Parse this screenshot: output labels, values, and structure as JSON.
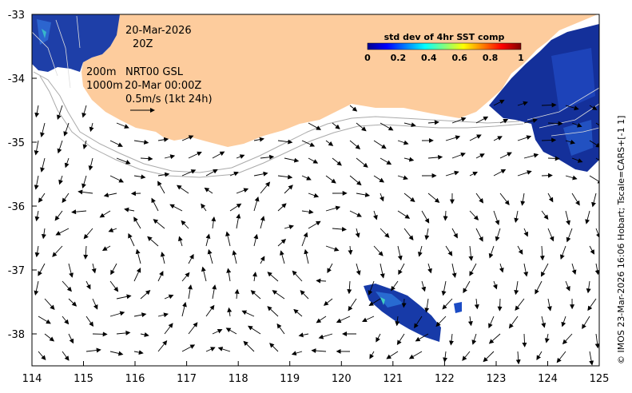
{
  "map": {
    "x_ticks": [
      "114",
      "115",
      "116",
      "117",
      "118",
      "119",
      "120",
      "121",
      "122",
      "123",
      "124",
      "125"
    ],
    "y_ticks": [
      "-33",
      "-34",
      "-35",
      "-36",
      "-37",
      "-38"
    ],
    "lon_range": [
      114,
      125
    ],
    "lat_range": [
      -38.5,
      -33
    ]
  },
  "annotations": {
    "date": "20-Mar-2026",
    "time": "20Z",
    "contour_200": "200m",
    "contour_1000": "1000m",
    "product": "NRT00 GSL",
    "analysis_time": "20-Mar 00:00Z",
    "scale_label": "0.5m/s (1kt 24h)"
  },
  "colorbar": {
    "title": "std dev of 4hr SST comp",
    "ticks": [
      "0",
      "0.2",
      "0.4",
      "0.6",
      "0.8",
      "1"
    ],
    "range": [
      0,
      1
    ]
  },
  "credit": "© IMOS 23-Mar-2026 16:06 Hobart; Tscale=CARS+[-1 1]",
  "colors": {
    "land": "#fdcc9d",
    "sst_low": "#00008f",
    "sst_mid": "#1e58c8",
    "ocean": "#ffffff"
  }
}
